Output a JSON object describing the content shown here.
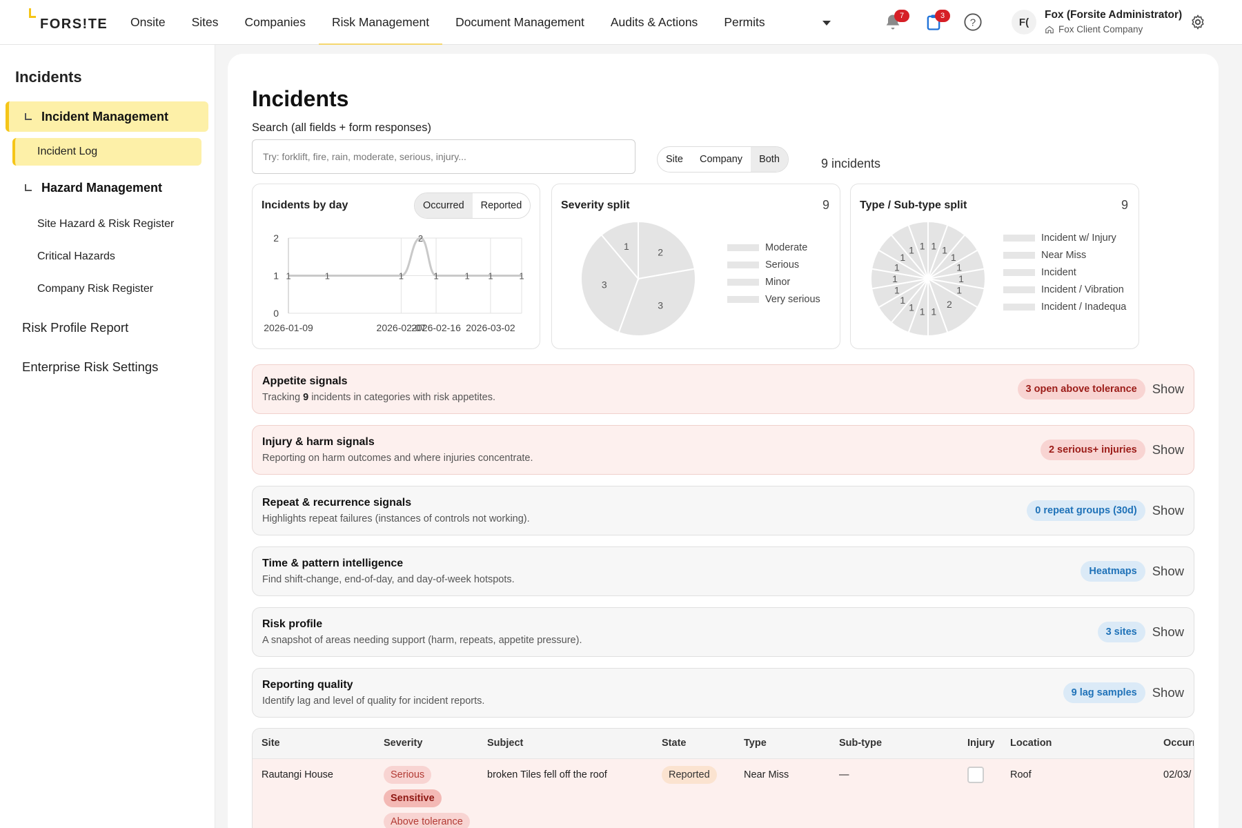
{
  "brand": {
    "logo_text": "FORS!TE",
    "accent": "#f5c518"
  },
  "nav": {
    "items": [
      "Onsite",
      "Sites",
      "Companies",
      "Risk Management",
      "Document Management",
      "Audits & Actions",
      "Permits"
    ],
    "active": "Risk Management",
    "notifications_count": "7",
    "tasks_count": "3",
    "help_icon": "help-circle-icon"
  },
  "user": {
    "initials": "F(",
    "name": "Fox (Forsite Administrator)",
    "company": "Fox Client Company"
  },
  "sidebar": {
    "title": "Incidents",
    "incident_management": "Incident Management",
    "incident_log": "Incident Log",
    "hazard_management": "Hazard Management",
    "hazard_items": [
      "Site Hazard & Risk Register",
      "Critical Hazards",
      "Company Risk Register"
    ],
    "risk_profile_report": "Risk Profile Report",
    "enterprise_risk_settings": "Enterprise Risk Settings"
  },
  "main": {
    "title": "Incidents",
    "search_label": "Search (all fields + form responses)",
    "search_placeholder": "Try: forklift, fire, rain, moderate, serious, injury...",
    "search_value": "",
    "scope_options": [
      "Site",
      "Company",
      "Both"
    ],
    "scope_selected": "Both",
    "incident_count": "9 incidents"
  },
  "cards": {
    "by_day": {
      "title": "Incidents by day",
      "toggle": [
        "Occurred",
        "Reported"
      ],
      "toggle_selected": "Occurred"
    },
    "severity": {
      "title": "Severity split",
      "count": "9"
    },
    "type": {
      "title": "Type / Sub-type split",
      "count": "9"
    }
  },
  "chart_data": [
    {
      "type": "line",
      "title": "Incidents by day",
      "x": [
        "2026-01-09",
        "2026-01-19",
        "2026-02-07",
        "2026-02-12",
        "2026-02-16",
        "2026-02-24",
        "2026-03-02",
        "2026-03-10"
      ],
      "values": [
        1,
        1,
        1,
        2,
        1,
        1,
        1,
        1
      ],
      "x_tick_labels": [
        "2026-01-09",
        "2026-02-07",
        "2026-02-16",
        "2026-03-02"
      ],
      "y_tick_labels": [
        "0",
        "1",
        "2"
      ],
      "ylim": [
        0,
        2
      ],
      "grid": true
    },
    {
      "type": "pie",
      "title": "Severity split",
      "categories": [
        "Moderate",
        "Serious",
        "Minor",
        "Very serious"
      ],
      "values": [
        2,
        3,
        3,
        1
      ],
      "legend": "right"
    },
    {
      "type": "pie",
      "title": "Type / Sub-type split",
      "categories": [
        "Incident w/ Injury",
        "Near Miss",
        "Incident",
        "Incident / Vibration",
        "Incident / Inadequa"
      ],
      "slice_values": [
        1,
        1,
        1,
        1,
        1,
        1,
        2,
        1,
        1,
        1,
        1,
        1,
        1,
        1,
        1,
        1,
        1
      ],
      "legend": "right"
    }
  ],
  "signals": [
    {
      "title": "Appetite signals",
      "desc_pre": "Tracking ",
      "desc_bold": "9",
      "desc_post": " incidents in categories with risk appetites.",
      "pill": "3 open above tolerance",
      "pill_color": "#9b1c18",
      "show": "Show"
    },
    {
      "title": "Injury & harm signals",
      "desc": "Reporting on harm outcomes and where injuries concentrate.",
      "pill": "2 serious+ injuries",
      "pill_color": "#9b1c18",
      "show": "Show"
    },
    {
      "title": "Repeat & recurrence signals",
      "desc": "Highlights repeat failures (instances of controls not working).",
      "pill": "0 repeat groups (30d)",
      "pill_color": "#1f72b8",
      "show": "Show"
    },
    {
      "title": "Time & pattern intelligence",
      "desc": "Find shift-change, end-of-day, and day-of-week hotspots.",
      "pill": "Heatmaps",
      "pill_color": "#1f72b8",
      "show": "Show"
    },
    {
      "title": "Risk profile",
      "desc": "A snapshot of areas needing support (harm, repeats, appetite pressure).",
      "pill": "3 sites",
      "pill_color": "#1f72b8",
      "show": "Show"
    },
    {
      "title": "Reporting quality",
      "desc": "Identify lag and level of quality for incident reports.",
      "pill": "9 lag samples",
      "pill_color": "#1f72b8",
      "show": "Show"
    }
  ],
  "table": {
    "headers": [
      "Site",
      "Severity",
      "Subject",
      "State",
      "Type",
      "Sub-type",
      "Injury",
      "Location",
      "Occurr"
    ],
    "rows": [
      {
        "site": "Rautangi House",
        "severity": "Serious",
        "flags": [
          "Sensitive",
          "Above tolerance"
        ],
        "subject": "broken Tiles fell off the roof",
        "state": "Reported",
        "type": "Near Miss",
        "subtype": "—",
        "injury": false,
        "location": "Roof",
        "occurred": "02/03/"
      }
    ]
  }
}
